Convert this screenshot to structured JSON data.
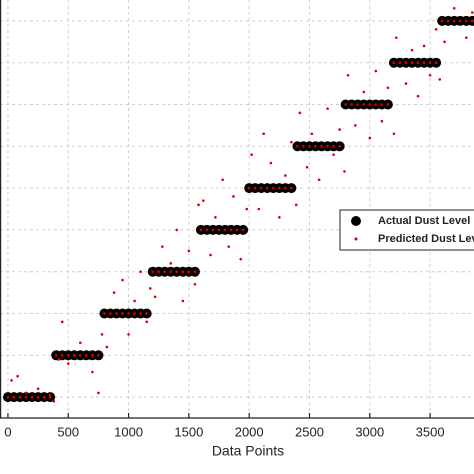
{
  "chart_data": {
    "type": "scatter",
    "x_label": "Data Points",
    "xlim": [
      -66,
      3864
    ],
    "ylim": [
      0.5,
      10.5
    ],
    "xticks": [
      0,
      500,
      1000,
      1500,
      2000,
      2500,
      3000,
      3500
    ],
    "yticks": [
      1,
      2,
      3,
      4,
      5,
      6,
      7,
      8,
      9,
      10
    ],
    "grid": true,
    "legend": "right",
    "series": [
      {
        "name": "Actual Dust Level",
        "color": "#000000",
        "marker": "big",
        "x": [
          0,
          50,
          100,
          150,
          200,
          250,
          300,
          350,
          400,
          450,
          500,
          550,
          600,
          650,
          700,
          750,
          800,
          850,
          900,
          950,
          1000,
          1050,
          1100,
          1150,
          1200,
          1250,
          1300,
          1350,
          1400,
          1450,
          1500,
          1550,
          1600,
          1650,
          1700,
          1750,
          1800,
          1850,
          1900,
          1950,
          2000,
          2050,
          2100,
          2150,
          2200,
          2250,
          2300,
          2350,
          2400,
          2450,
          2500,
          2550,
          2600,
          2650,
          2700,
          2750,
          2800,
          2850,
          2900,
          2950,
          3000,
          3050,
          3100,
          3150,
          3200,
          3250,
          3300,
          3350,
          3400,
          3450,
          3500,
          3550,
          3600,
          3650,
          3700,
          3750,
          3800,
          3850
        ],
        "values": [
          1,
          1,
          1,
          1,
          1,
          1,
          1,
          1,
          2,
          2,
          2,
          2,
          2,
          2,
          2,
          2,
          3,
          3,
          3,
          3,
          3,
          3,
          3,
          3,
          4,
          4,
          4,
          4,
          4,
          4,
          4,
          4,
          5,
          5,
          5,
          5,
          5,
          5,
          5,
          5,
          6,
          6,
          6,
          6,
          6,
          6,
          6,
          6,
          7,
          7,
          7,
          7,
          7,
          7,
          7,
          7,
          8,
          8,
          8,
          8,
          8,
          8,
          8,
          8,
          9,
          9,
          9,
          9,
          9,
          9,
          9,
          9,
          10,
          10,
          10,
          10,
          10,
          10
        ]
      },
      {
        "name": "Predicted Dust Level",
        "color": "#d40000",
        "marker": "dot",
        "x": [
          30,
          80,
          150,
          250,
          350,
          380,
          420,
          450,
          500,
          600,
          700,
          750,
          780,
          820,
          880,
          950,
          1000,
          1050,
          1100,
          1150,
          1180,
          1220,
          1280,
          1350,
          1400,
          1450,
          1500,
          1550,
          1580,
          1620,
          1680,
          1720,
          1780,
          1830,
          1870,
          1930,
          1980,
          2020,
          2080,
          2120,
          2180,
          2250,
          2300,
          2350,
          2390,
          2420,
          2480,
          2520,
          2580,
          2650,
          2700,
          2750,
          2790,
          2820,
          2880,
          2950,
          3000,
          3050,
          3100,
          3150,
          3200,
          3220,
          3300,
          3350,
          3400,
          3450,
          3500,
          3550,
          3580,
          3620,
          3700,
          3800,
          3850
        ],
        "values": [
          1.4,
          1.5,
          1.1,
          1.2,
          1.05,
          0.9,
          1.9,
          2.8,
          1.8,
          2.3,
          1.6,
          1.1,
          2.5,
          2.2,
          3.5,
          3.8,
          2.5,
          3.3,
          4.0,
          2.8,
          3.6,
          3.4,
          4.6,
          4.2,
          5.0,
          3.3,
          4.5,
          3.7,
          5.6,
          5.7,
          4.4,
          5.3,
          6.2,
          4.6,
          5.8,
          4.3,
          5.5,
          6.8,
          5.5,
          7.3,
          6.6,
          5.3,
          6.3,
          7.1,
          5.6,
          7.8,
          6.5,
          7.3,
          6.2,
          7.9,
          6.8,
          7.4,
          6.4,
          8.7,
          7.5,
          8.3,
          7.2,
          8.8,
          7.6,
          8.4,
          7.3,
          9.6,
          8.5,
          9.3,
          8.2,
          9.4,
          8.7,
          9.8,
          8.6,
          9.5,
          10.3,
          9.6,
          10.2
        ]
      }
    ]
  }
}
